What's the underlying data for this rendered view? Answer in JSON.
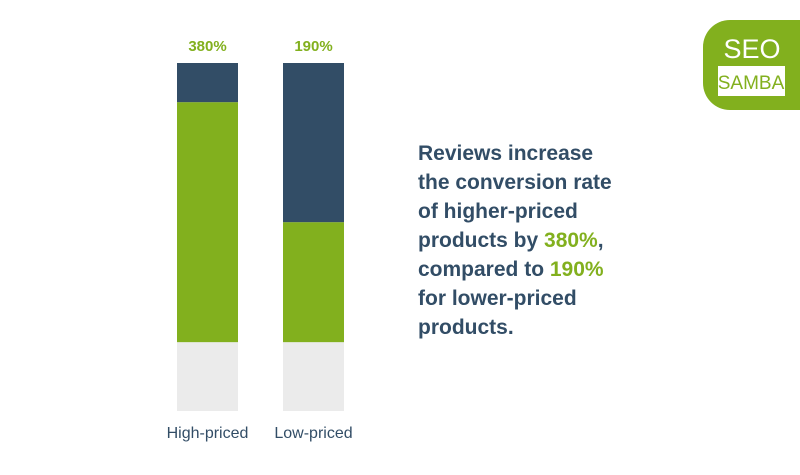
{
  "chart_data": {
    "type": "stacked-bar",
    "categories": [
      "High-priced",
      "Low-priced"
    ],
    "series": [
      {
        "color": "#ebebeb",
        "values": [
          109,
          109
        ]
      },
      {
        "color": "#82b01e",
        "values": [
          380,
          190
        ]
      },
      {
        "color": "#324d66",
        "values": [
          62,
          252
        ]
      }
    ],
    "value_labels": [
      "380%",
      "190%"
    ],
    "label_color": "#82b01e",
    "ylim": [
      0,
      551
    ],
    "annotation": {
      "color": "#324d66",
      "highlight_color": "#82b01e",
      "lines": [
        [
          {
            "text": "Reviews increase"
          }
        ],
        [
          {
            "text": "the conversion rate"
          }
        ],
        [
          {
            "text": "of higher-priced"
          }
        ],
        [
          {
            "text": "products by "
          },
          {
            "text": "380%",
            "highlight": true
          },
          {
            "text": ","
          }
        ],
        [
          {
            "text": "compared to "
          },
          {
            "text": "190%",
            "highlight": true
          }
        ],
        [
          {
            "text": "for lower-priced"
          }
        ],
        [
          {
            "text": "products."
          }
        ]
      ]
    },
    "logo": {
      "top": "SEO",
      "bottom": "SAMBA",
      "color": "#82b01e"
    }
  }
}
